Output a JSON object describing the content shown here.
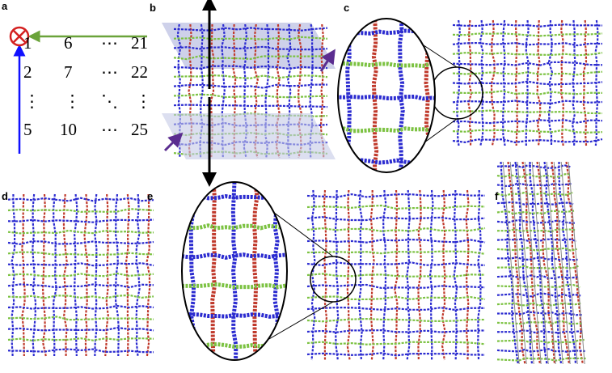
{
  "panels": {
    "a": {
      "label": "a",
      "matrix": [
        [
          "1",
          "6",
          "⋯",
          "21"
        ],
        [
          "2",
          "7",
          "⋯",
          "22"
        ],
        [
          "⋮",
          "⋮",
          "⋱",
          "⋮"
        ],
        [
          "5",
          "10",
          "⋯",
          "25"
        ]
      ]
    },
    "b": {
      "label": "b"
    },
    "c": {
      "label": "c"
    },
    "d": {
      "label": "d"
    },
    "e": {
      "label": "e"
    },
    "f": {
      "label": "f"
    }
  },
  "colors": {
    "green": "#7cc242",
    "red": "#c0392b",
    "blue": "#2b2bd0",
    "plane": "#c5c9e6",
    "origin": "#d42020",
    "arrow_purple": "#5b2d90",
    "arrow_blue": "#1010ff",
    "arrow_green": "#6aa33a"
  },
  "icons": {
    "origin": "circled-times-icon"
  }
}
